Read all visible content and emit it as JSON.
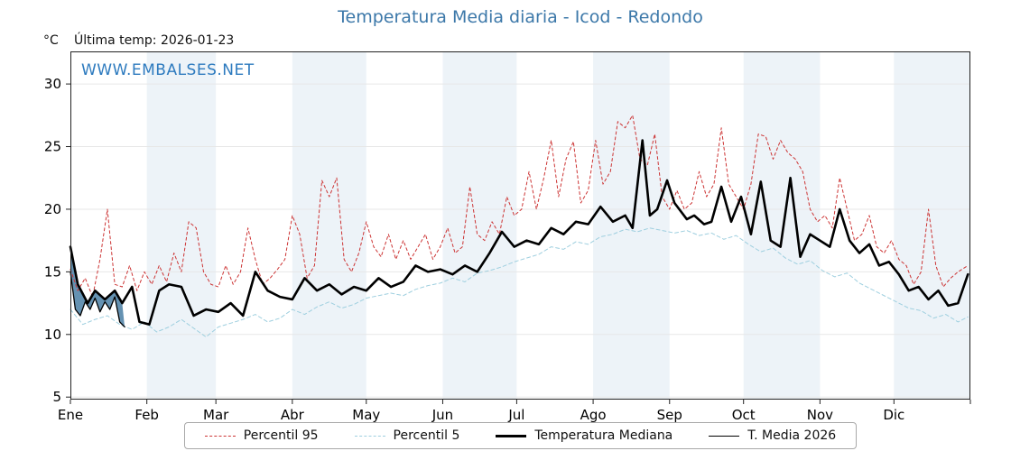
{
  "header": {
    "units_label": "°C",
    "last_temp_label": "Última temp: 2026-01-23",
    "watermark": "WWW.EMBALSES.NET"
  },
  "colors": {
    "title": "#3c78a9",
    "watermark": "#2e7bbf",
    "band": "#edf3f8",
    "grid": "#e7e7e7",
    "axis": "#222222",
    "p95": "#cc3333",
    "p5": "#9ecfdf",
    "median": "#000000",
    "t2026": "#000000"
  },
  "chart_data": {
    "type": "line",
    "title": "Temperatura Media diaria - Icod - Redondo",
    "ylabel": "°C",
    "ylim": [
      4.8,
      32.6
    ],
    "yticks": [
      5,
      10,
      15,
      20,
      25,
      30
    ],
    "x_unit": "day_of_year",
    "xlim": [
      0,
      365
    ],
    "month_labels": [
      "Ene",
      "Feb",
      "Mar",
      "Abr",
      "May",
      "Jun",
      "Jul",
      "Ago",
      "Sep",
      "Oct",
      "Nov",
      "Dic"
    ],
    "month_boundaries": [
      0,
      31,
      59,
      90,
      120,
      151,
      181,
      212,
      243,
      273,
      304,
      334,
      365
    ],
    "legend_position": "bottom",
    "grid": true,
    "fill_2026": {
      "color": "#4a7fa5",
      "opacity": 0.85
    },
    "series": [
      {
        "name": "Percentil 95",
        "color": "#cc3333",
        "dash": "3,3",
        "width": 1,
        "points": [
          [
            0,
            15.2
          ],
          [
            3,
            13.5
          ],
          [
            6,
            14.5
          ],
          [
            9,
            13
          ],
          [
            12,
            16
          ],
          [
            15,
            20
          ],
          [
            18,
            14
          ],
          [
            21,
            13.8
          ],
          [
            24,
            15.5
          ],
          [
            27,
            13.5
          ],
          [
            30,
            15
          ],
          [
            33,
            14
          ],
          [
            36,
            15.5
          ],
          [
            39,
            14.2
          ],
          [
            42,
            16.5
          ],
          [
            45,
            15
          ],
          [
            48,
            19
          ],
          [
            51,
            18.5
          ],
          [
            54,
            15
          ],
          [
            57,
            14
          ],
          [
            60,
            13.8
          ],
          [
            63,
            15.5
          ],
          [
            66,
            14
          ],
          [
            69,
            15
          ],
          [
            72,
            18.5
          ],
          [
            75,
            16
          ],
          [
            78,
            14
          ],
          [
            81,
            14.5
          ],
          [
            84,
            15.2
          ],
          [
            87,
            16
          ],
          [
            90,
            19.5
          ],
          [
            93,
            18
          ],
          [
            96,
            14.5
          ],
          [
            99,
            15.5
          ],
          [
            102,
            22.3
          ],
          [
            105,
            21
          ],
          [
            108,
            22.5
          ],
          [
            111,
            16
          ],
          [
            114,
            15
          ],
          [
            117,
            16.5
          ],
          [
            120,
            19
          ],
          [
            123,
            17
          ],
          [
            126,
            16.2
          ],
          [
            129,
            18
          ],
          [
            132,
            16
          ],
          [
            135,
            17.5
          ],
          [
            138,
            16
          ],
          [
            141,
            17
          ],
          [
            144,
            18
          ],
          [
            147,
            16
          ],
          [
            150,
            17
          ],
          [
            153,
            18.5
          ],
          [
            156,
            16.5
          ],
          [
            159,
            17
          ],
          [
            162,
            21.8
          ],
          [
            165,
            18
          ],
          [
            168,
            17.5
          ],
          [
            171,
            19
          ],
          [
            174,
            18
          ],
          [
            177,
            21
          ],
          [
            180,
            19.5
          ],
          [
            183,
            20
          ],
          [
            186,
            23
          ],
          [
            189,
            20
          ],
          [
            192,
            22.5
          ],
          [
            195,
            25.5
          ],
          [
            198,
            21
          ],
          [
            201,
            24
          ],
          [
            204,
            25.4
          ],
          [
            207,
            20.5
          ],
          [
            210,
            21.5
          ],
          [
            213,
            25.5
          ],
          [
            216,
            22
          ],
          [
            219,
            23
          ],
          [
            222,
            27
          ],
          [
            225,
            26.5
          ],
          [
            228,
            27.5
          ],
          [
            231,
            24
          ],
          [
            234,
            23.5
          ],
          [
            237,
            26
          ],
          [
            240,
            21
          ],
          [
            243,
            20
          ],
          [
            246,
            21.5
          ],
          [
            249,
            20
          ],
          [
            252,
            20.5
          ],
          [
            255,
            23
          ],
          [
            258,
            21
          ],
          [
            261,
            22
          ],
          [
            264,
            26.5
          ],
          [
            267,
            22
          ],
          [
            270,
            21
          ],
          [
            273,
            20
          ],
          [
            276,
            22
          ],
          [
            279,
            26
          ],
          [
            282,
            25.8
          ],
          [
            285,
            24
          ],
          [
            288,
            25.5
          ],
          [
            291,
            24.5
          ],
          [
            294,
            24
          ],
          [
            297,
            23
          ],
          [
            300,
            20
          ],
          [
            303,
            19
          ],
          [
            306,
            19.5
          ],
          [
            309,
            18.5
          ],
          [
            312,
            22.5
          ],
          [
            315,
            20
          ],
          [
            318,
            17.5
          ],
          [
            321,
            18
          ],
          [
            324,
            19.5
          ],
          [
            327,
            17
          ],
          [
            330,
            16.5
          ],
          [
            333,
            17.5
          ],
          [
            336,
            16
          ],
          [
            339,
            15.5
          ],
          [
            342,
            14
          ],
          [
            345,
            15
          ],
          [
            348,
            20
          ],
          [
            351,
            15.5
          ],
          [
            354,
            13.8
          ],
          [
            357,
            14.5
          ],
          [
            360,
            15
          ],
          [
            364,
            15.5
          ]
        ]
      },
      {
        "name": "Percentil 5",
        "color": "#9ecfdf",
        "dash": "4,3",
        "width": 1,
        "points": [
          [
            0,
            12
          ],
          [
            5,
            10.8
          ],
          [
            10,
            11.2
          ],
          [
            15,
            11.5
          ],
          [
            20,
            10.8
          ],
          [
            25,
            10.4
          ],
          [
            30,
            11
          ],
          [
            35,
            10.2
          ],
          [
            40,
            10.6
          ],
          [
            45,
            11.2
          ],
          [
            50,
            10.5
          ],
          [
            55,
            9.8
          ],
          [
            60,
            10.6
          ],
          [
            65,
            10.9
          ],
          [
            70,
            11.2
          ],
          [
            75,
            11.6
          ],
          [
            80,
            11
          ],
          [
            85,
            11.3
          ],
          [
            90,
            12
          ],
          [
            95,
            11.6
          ],
          [
            100,
            12.2
          ],
          [
            105,
            12.6
          ],
          [
            110,
            12.1
          ],
          [
            115,
            12.4
          ],
          [
            120,
            12.9
          ],
          [
            125,
            13.1
          ],
          [
            130,
            13.3
          ],
          [
            135,
            13.1
          ],
          [
            140,
            13.6
          ],
          [
            145,
            13.9
          ],
          [
            150,
            14.1
          ],
          [
            155,
            14.5
          ],
          [
            160,
            14.2
          ],
          [
            165,
            14.9
          ],
          [
            170,
            15.1
          ],
          [
            175,
            15.4
          ],
          [
            180,
            15.8
          ],
          [
            185,
            16.1
          ],
          [
            190,
            16.4
          ],
          [
            195,
            17
          ],
          [
            200,
            16.8
          ],
          [
            205,
            17.4
          ],
          [
            210,
            17.2
          ],
          [
            215,
            17.8
          ],
          [
            220,
            18
          ],
          [
            225,
            18.4
          ],
          [
            230,
            18.2
          ],
          [
            235,
            18.5
          ],
          [
            240,
            18.3
          ],
          [
            245,
            18.1
          ],
          [
            250,
            18.3
          ],
          [
            255,
            17.9
          ],
          [
            260,
            18.1
          ],
          [
            265,
            17.6
          ],
          [
            270,
            17.9
          ],
          [
            275,
            17.2
          ],
          [
            280,
            16.6
          ],
          [
            285,
            16.9
          ],
          [
            290,
            16.1
          ],
          [
            295,
            15.6
          ],
          [
            300,
            15.9
          ],
          [
            305,
            15.1
          ],
          [
            310,
            14.6
          ],
          [
            315,
            14.9
          ],
          [
            320,
            14.1
          ],
          [
            325,
            13.6
          ],
          [
            330,
            13.1
          ],
          [
            335,
            12.6
          ],
          [
            340,
            12.1
          ],
          [
            345,
            11.9
          ],
          [
            350,
            11.3
          ],
          [
            355,
            11.6
          ],
          [
            360,
            11
          ],
          [
            364,
            11.4
          ]
        ]
      },
      {
        "name": "Temperatura Mediana",
        "color": "#000000",
        "dash": null,
        "width": 2.6,
        "points": [
          [
            0,
            17
          ],
          [
            3,
            14
          ],
          [
            7,
            12.5
          ],
          [
            10,
            13.5
          ],
          [
            14,
            12.8
          ],
          [
            18,
            13.5
          ],
          [
            21,
            12.5
          ],
          [
            25,
            13.8
          ],
          [
            28,
            11
          ],
          [
            32,
            10.8
          ],
          [
            36,
            13.5
          ],
          [
            40,
            14
          ],
          [
            45,
            13.8
          ],
          [
            50,
            11.5
          ],
          [
            55,
            12
          ],
          [
            60,
            11.8
          ],
          [
            65,
            12.5
          ],
          [
            70,
            11.5
          ],
          [
            75,
            15
          ],
          [
            80,
            13.5
          ],
          [
            85,
            13
          ],
          [
            90,
            12.8
          ],
          [
            95,
            14.5
          ],
          [
            100,
            13.5
          ],
          [
            105,
            14
          ],
          [
            110,
            13.2
          ],
          [
            115,
            13.8
          ],
          [
            120,
            13.5
          ],
          [
            125,
            14.5
          ],
          [
            130,
            13.8
          ],
          [
            135,
            14.2
          ],
          [
            140,
            15.5
          ],
          [
            145,
            15
          ],
          [
            150,
            15.2
          ],
          [
            155,
            14.8
          ],
          [
            160,
            15.5
          ],
          [
            165,
            15
          ],
          [
            170,
            16.5
          ],
          [
            175,
            18.2
          ],
          [
            180,
            17
          ],
          [
            185,
            17.5
          ],
          [
            190,
            17.2
          ],
          [
            195,
            18.5
          ],
          [
            200,
            18
          ],
          [
            205,
            19
          ],
          [
            210,
            18.8
          ],
          [
            215,
            20.2
          ],
          [
            220,
            19
          ],
          [
            225,
            19.5
          ],
          [
            228,
            18.5
          ],
          [
            232,
            25.5
          ],
          [
            235,
            19.5
          ],
          [
            238,
            20
          ],
          [
            242,
            22.3
          ],
          [
            245,
            20.5
          ],
          [
            250,
            19.2
          ],
          [
            253,
            19.5
          ],
          [
            257,
            18.8
          ],
          [
            260,
            19
          ],
          [
            264,
            21.8
          ],
          [
            268,
            19
          ],
          [
            272,
            21
          ],
          [
            276,
            18
          ],
          [
            280,
            22.2
          ],
          [
            284,
            17.5
          ],
          [
            288,
            17
          ],
          [
            292,
            22.5
          ],
          [
            296,
            16.2
          ],
          [
            300,
            18
          ],
          [
            304,
            17.5
          ],
          [
            308,
            17
          ],
          [
            312,
            20
          ],
          [
            316,
            17.5
          ],
          [
            320,
            16.5
          ],
          [
            324,
            17.2
          ],
          [
            328,
            15.5
          ],
          [
            332,
            15.8
          ],
          [
            336,
            14.8
          ],
          [
            340,
            13.5
          ],
          [
            344,
            13.8
          ],
          [
            348,
            12.8
          ],
          [
            352,
            13.5
          ],
          [
            356,
            12.3
          ],
          [
            360,
            12.5
          ],
          [
            364,
            14.8
          ]
        ]
      },
      {
        "name": "T. Media 2026",
        "color": "#000000",
        "dash": null,
        "width": 1.3,
        "points": [
          [
            0,
            15
          ],
          [
            2,
            12
          ],
          [
            4,
            11.5
          ],
          [
            6,
            12.6
          ],
          [
            8,
            12
          ],
          [
            10,
            12.9
          ],
          [
            12,
            11.8
          ],
          [
            14,
            12.6
          ],
          [
            16,
            12
          ],
          [
            18,
            13
          ],
          [
            20,
            11
          ],
          [
            22,
            10.6
          ]
        ]
      }
    ]
  }
}
